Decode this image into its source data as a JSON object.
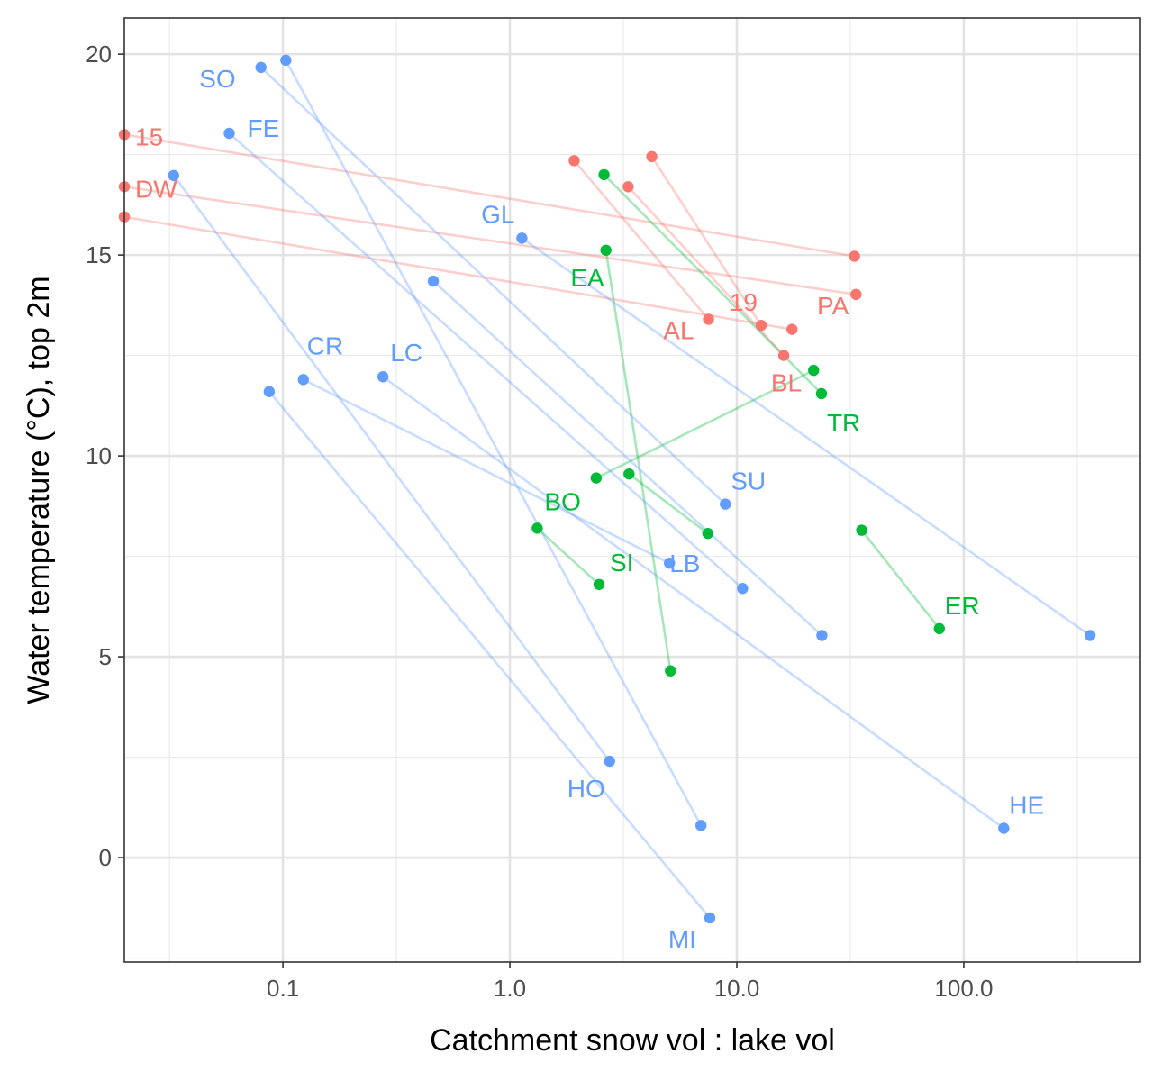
{
  "chart_data": {
    "type": "scatter",
    "title": "",
    "xlabel": "Catchment snow vol : lake vol",
    "ylabel": "Water temperature (°C), top 2m",
    "x_scale": "log10",
    "xlim": [
      0.02,
      600
    ],
    "ylim": [
      -2.6,
      20.9
    ],
    "x_ticks": [
      0.1,
      1,
      10,
      100
    ],
    "x_tick_labels": [
      "0.1",
      "1.0",
      "10.0",
      "100.0"
    ],
    "y_ticks": [
      0,
      5,
      10,
      15,
      20
    ],
    "y_tick_labels": [
      "0",
      "5",
      "10",
      "15",
      "20"
    ],
    "grid": true,
    "legend": "none",
    "colors": {
      "red": "#F8766D",
      "green": "#00BA38",
      "blue": "#619CFF"
    },
    "series": [
      {
        "color": "red",
        "points": [
          {
            "x": 0.02,
            "y": 18.0,
            "label": "15"
          },
          {
            "x": 0.02,
            "y": 16.7,
            "label": "DW"
          },
          {
            "x": 0.02,
            "y": 15.95,
            "label": ""
          },
          {
            "x": 1.92,
            "y": 17.35,
            "label": ""
          },
          {
            "x": 4.22,
            "y": 17.45,
            "label": ""
          },
          {
            "x": 3.32,
            "y": 16.7,
            "label": ""
          },
          {
            "x": 33.0,
            "y": 14.97,
            "label": ""
          },
          {
            "x": 33.5,
            "y": 14.02,
            "label": "PA"
          },
          {
            "x": 7.5,
            "y": 13.4,
            "label": "AL"
          },
          {
            "x": 12.8,
            "y": 13.25,
            "label": "19"
          },
          {
            "x": 17.5,
            "y": 13.15,
            "label": ""
          },
          {
            "x": 16.1,
            "y": 12.5,
            "label": "BL"
          }
        ]
      },
      {
        "color": "green",
        "points": [
          {
            "x": 2.6,
            "y": 17.0,
            "label": ""
          },
          {
            "x": 2.65,
            "y": 15.12,
            "label": "EA"
          },
          {
            "x": 21.8,
            "y": 12.13,
            "label": ""
          },
          {
            "x": 23.6,
            "y": 11.55,
            "label": "TR"
          },
          {
            "x": 2.4,
            "y": 9.45,
            "label": ""
          },
          {
            "x": 3.35,
            "y": 9.55,
            "label": ""
          },
          {
            "x": 7.45,
            "y": 8.07,
            "label": ""
          },
          {
            "x": 1.32,
            "y": 8.2,
            "label": "BO"
          },
          {
            "x": 2.47,
            "y": 6.8,
            "label": "SI"
          },
          {
            "x": 35.5,
            "y": 8.15,
            "label": ""
          },
          {
            "x": 78.0,
            "y": 5.7,
            "label": "ER"
          },
          {
            "x": 5.1,
            "y": 4.65,
            "label": ""
          }
        ]
      },
      {
        "color": "blue",
        "points": [
          {
            "x": 0.103,
            "y": 19.85,
            "label": ""
          },
          {
            "x": 0.08,
            "y": 19.67,
            "label": "SO"
          },
          {
            "x": 0.058,
            "y": 18.03,
            "label": "FE"
          },
          {
            "x": 0.033,
            "y": 16.98,
            "label": ""
          },
          {
            "x": 1.13,
            "y": 15.42,
            "label": "GL"
          },
          {
            "x": 0.46,
            "y": 14.35,
            "label": ""
          },
          {
            "x": 0.123,
            "y": 11.9,
            "label": "CR"
          },
          {
            "x": 0.276,
            "y": 11.97,
            "label": "LC"
          },
          {
            "x": 0.087,
            "y": 11.6,
            "label": ""
          },
          {
            "x": 8.9,
            "y": 8.8,
            "label": "SU"
          },
          {
            "x": 5.05,
            "y": 7.33,
            "label": "LB"
          },
          {
            "x": 10.6,
            "y": 6.7,
            "label": ""
          },
          {
            "x": 23.7,
            "y": 5.53,
            "label": ""
          },
          {
            "x": 360.0,
            "y": 5.53,
            "label": ""
          },
          {
            "x": 2.75,
            "y": 2.4,
            "label": "HO"
          },
          {
            "x": 6.95,
            "y": 0.8,
            "label": ""
          },
          {
            "x": 150.0,
            "y": 0.73,
            "label": "HE"
          },
          {
            "x": 7.6,
            "y": -1.5,
            "label": "MI"
          }
        ]
      }
    ],
    "segments": [
      {
        "color": "red",
        "from": [
          0.02,
          18.0
        ],
        "to": [
          33.0,
          14.97
        ]
      },
      {
        "color": "red",
        "from": [
          0.02,
          16.7
        ],
        "to": [
          33.5,
          14.02
        ]
      },
      {
        "color": "red",
        "from": [
          0.02,
          15.95
        ],
        "to": [
          17.5,
          13.15
        ]
      },
      {
        "color": "red",
        "from": [
          1.92,
          17.35
        ],
        "to": [
          7.5,
          13.4
        ]
      },
      {
        "color": "red",
        "from": [
          4.22,
          17.45
        ],
        "to": [
          12.8,
          13.25
        ]
      },
      {
        "color": "red",
        "from": [
          3.32,
          16.7
        ],
        "to": [
          16.1,
          12.5
        ]
      },
      {
        "color": "green",
        "from": [
          2.6,
          17.0
        ],
        "to": [
          23.6,
          11.55
        ]
      },
      {
        "color": "green",
        "from": [
          2.65,
          15.12
        ],
        "to": [
          5.1,
          4.65
        ]
      },
      {
        "color": "green",
        "from": [
          2.4,
          9.45
        ],
        "to": [
          21.8,
          12.13
        ]
      },
      {
        "color": "green",
        "from": [
          3.35,
          9.55
        ],
        "to": [
          7.45,
          8.07
        ]
      },
      {
        "color": "green",
        "from": [
          1.32,
          8.2
        ],
        "to": [
          2.47,
          6.8
        ]
      },
      {
        "color": "green",
        "from": [
          35.5,
          8.15
        ],
        "to": [
          78.0,
          5.7
        ]
      },
      {
        "color": "blue",
        "from": [
          0.103,
          19.85
        ],
        "to": [
          6.95,
          0.8
        ]
      },
      {
        "color": "blue",
        "from": [
          0.08,
          19.67
        ],
        "to": [
          8.9,
          8.8
        ]
      },
      {
        "color": "blue",
        "from": [
          0.058,
          18.03
        ],
        "to": [
          10.6,
          6.7
        ]
      },
      {
        "color": "blue",
        "from": [
          0.033,
          16.98
        ],
        "to": [
          2.75,
          2.4
        ]
      },
      {
        "color": "blue",
        "from": [
          1.13,
          15.42
        ],
        "to": [
          360.0,
          5.53
        ]
      },
      {
        "color": "blue",
        "from": [
          0.46,
          14.35
        ],
        "to": [
          23.7,
          5.53
        ]
      },
      {
        "color": "blue",
        "from": [
          0.123,
          11.9
        ],
        "to": [
          5.05,
          7.33
        ]
      },
      {
        "color": "blue",
        "from": [
          0.276,
          11.97
        ],
        "to": [
          150.0,
          0.73
        ]
      },
      {
        "color": "blue",
        "from": [
          0.087,
          11.6
        ],
        "to": [
          7.6,
          -1.5
        ]
      }
    ]
  }
}
